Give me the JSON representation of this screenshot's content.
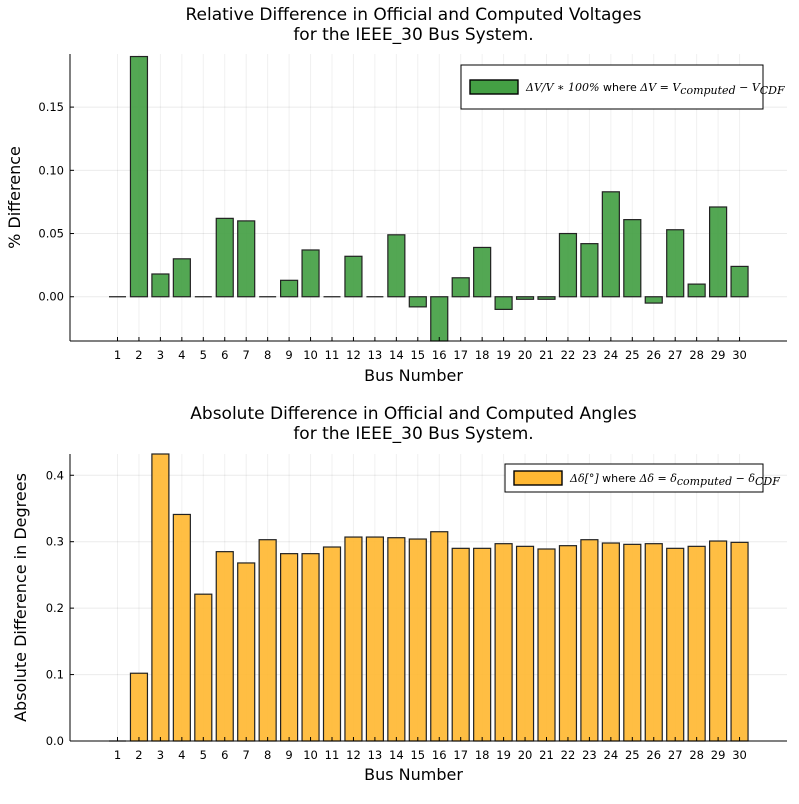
{
  "chart_data": [
    {
      "type": "bar",
      "title": [
        "Relative Difference in Official and Computed Voltages",
        "for the IEEE_30 Bus System."
      ],
      "xlabel": "Bus Number",
      "ylabel": "% Difference",
      "categories": [
        "1",
        "2",
        "3",
        "4",
        "5",
        "6",
        "7",
        "8",
        "9",
        "10",
        "11",
        "12",
        "13",
        "14",
        "15",
        "16",
        "17",
        "18",
        "19",
        "20",
        "21",
        "22",
        "23",
        "24",
        "25",
        "26",
        "27",
        "28",
        "29",
        "30"
      ],
      "series": [
        {
          "name": "ΔV/V * 100% where ΔV = V_computed − V_CDF",
          "color": "#44a044",
          "values": [
            0.0,
            0.19,
            0.018,
            0.03,
            0.0,
            0.062,
            0.06,
            0.0,
            0.013,
            0.037,
            0.0,
            0.032,
            0.0,
            0.049,
            -0.008,
            -0.05,
            0.015,
            0.039,
            -0.01,
            -0.002,
            -0.002,
            0.05,
            0.042,
            0.083,
            0.061,
            -0.005,
            0.053,
            0.01,
            0.071,
            0.024
          ]
        }
      ],
      "ylim": [
        -0.035,
        0.192
      ],
      "yticks": [
        "0.00",
        "0.05",
        "0.10",
        "0.15"
      ],
      "grid": true,
      "legend_position": "top-right",
      "legend": {
        "math": "ΔV/V ∗ 100%",
        "where": " where ",
        "expr": "ΔV = V",
        "sub1": "computed",
        "minus": " − V",
        "sub2": "CDF"
      }
    },
    {
      "type": "bar",
      "title": [
        "Absolute Difference in Official and Computed Angles",
        "for the IEEE_30 Bus System."
      ],
      "xlabel": "Bus Number",
      "ylabel": "Absolute Difference in Degrees",
      "categories": [
        "1",
        "2",
        "3",
        "4",
        "5",
        "6",
        "7",
        "8",
        "9",
        "10",
        "11",
        "12",
        "13",
        "14",
        "15",
        "16",
        "17",
        "18",
        "19",
        "20",
        "21",
        "22",
        "23",
        "24",
        "25",
        "26",
        "27",
        "28",
        "29",
        "30"
      ],
      "series": [
        {
          "name": "Δδ[°] where Δδ = δ_computed − δ_CDF",
          "color": "#ffb833",
          "values": [
            0.0,
            0.102,
            0.432,
            0.341,
            0.221,
            0.285,
            0.268,
            0.303,
            0.282,
            0.282,
            0.292,
            0.307,
            0.307,
            0.306,
            0.304,
            0.315,
            0.29,
            0.29,
            0.297,
            0.293,
            0.289,
            0.294,
            0.303,
            0.298,
            0.296,
            0.297,
            0.29,
            0.293,
            0.301,
            0.299
          ]
        }
      ],
      "ylim": [
        0.0,
        0.432
      ],
      "yticks": [
        "0.0",
        "0.1",
        "0.2",
        "0.3",
        "0.4"
      ],
      "grid": true,
      "legend_position": "top-right",
      "legend": {
        "math": "Δδ[°]",
        "where": " where ",
        "expr": "Δδ = δ",
        "sub1": "computed",
        "minus": " − δ",
        "sub2": "CDF"
      }
    }
  ]
}
